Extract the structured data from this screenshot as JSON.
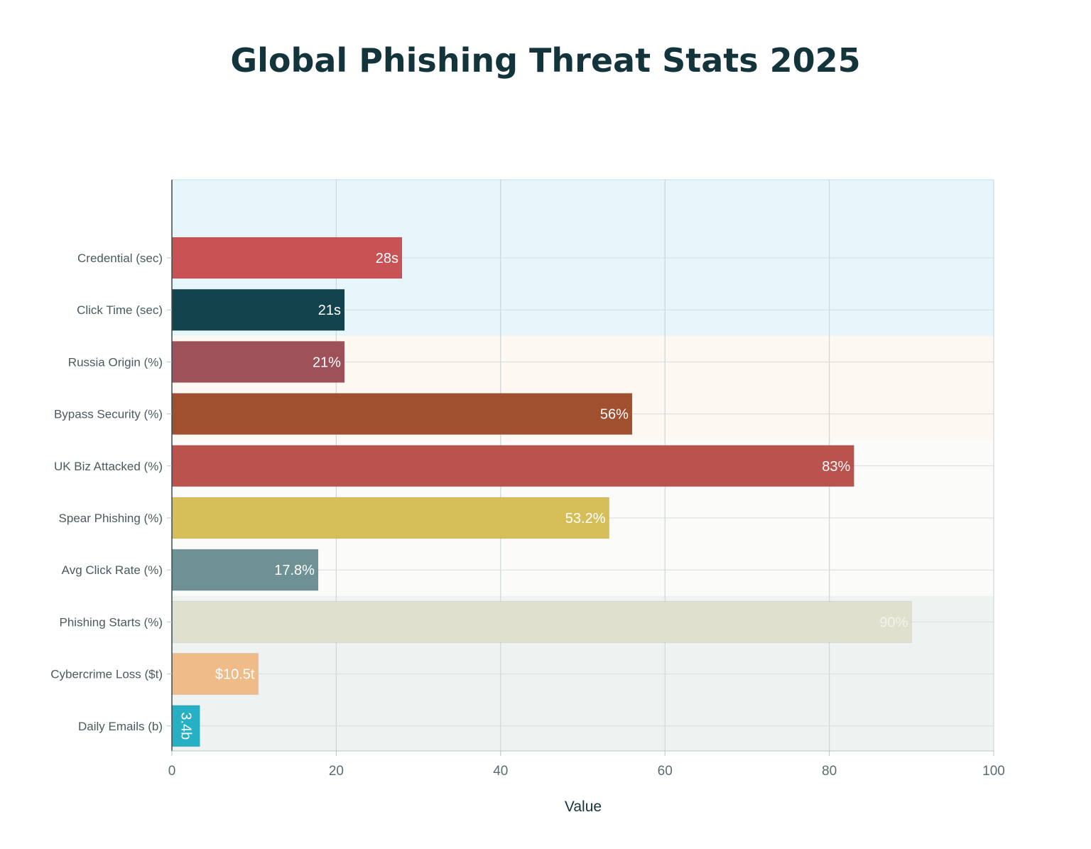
{
  "chart_data": {
    "type": "bar",
    "orientation": "horizontal",
    "title": "Global Phishing Threat Stats 2025",
    "xlabel": "Value",
    "ylabel": "",
    "xlim": [
      0,
      100
    ],
    "x_ticks": [
      0,
      20,
      40,
      60,
      80,
      100
    ],
    "grid": true,
    "legend": "none",
    "categories": [
      "Credential (sec)",
      "Click Time (sec)",
      "Russia Origin (%)",
      "Bypass Security (%)",
      "UK Biz Attacked (%)",
      "Spear Phishing (%)",
      "Avg Click Rate (%)",
      "Phishing Starts (%)",
      "Cybercrime Loss ($t)",
      "Daily Emails (b)"
    ],
    "values": [
      28,
      21,
      21,
      56,
      83,
      53.2,
      17.8,
      90,
      10.5,
      3.4
    ],
    "data_labels": [
      "28s",
      "21s",
      "21%",
      "56%",
      "83%",
      "53.2%",
      "17.8%",
      "90%",
      "$10.5t",
      "3.4b"
    ],
    "bar_colors": [
      "#c85254",
      "#13434d",
      "#9e5159",
      "#a0502f",
      "#ba524d",
      "#d6be59",
      "#6d9194",
      "#dfe0cd",
      "#efbb88",
      "#27b0c4"
    ],
    "label_colors": [
      "#ffffff",
      "#ffffff",
      "#ffffff",
      "#ffffff",
      "#ffffff",
      "#ffffff",
      "#ffffff",
      "#f4f4ec",
      "#ffffff",
      "#ffffff"
    ],
    "label_rotated": [
      false,
      false,
      false,
      false,
      false,
      false,
      false,
      false,
      false,
      true
    ],
    "background_bands": [
      {
        "from_category": "Credential (sec)",
        "to_category": "Click Time (sec)",
        "color": "#e6f6fa"
      },
      {
        "from_category": "Russia Origin (%)",
        "to_category": "Bypass Security (%)",
        "color": "#fdf8f1"
      },
      {
        "from_category": "UK Biz Attacked (%)",
        "to_category": "Avg Click Rate (%)",
        "color": "#fbfbfa"
      },
      {
        "from_category": "Phishing Starts (%)",
        "to_category": "Daily Emails (b)",
        "color": "#eef3f2"
      }
    ]
  }
}
